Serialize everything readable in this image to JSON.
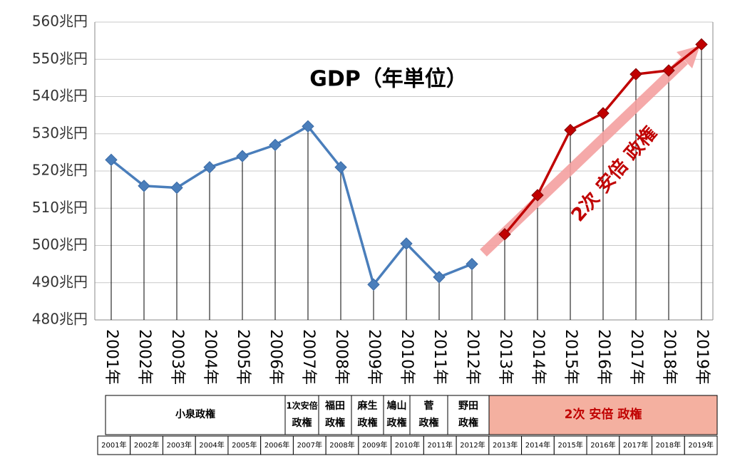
{
  "chart_data": {
    "type": "line",
    "title": "GDP（年単位）",
    "annotation": "2次 安倍 政権",
    "categories": [
      "2001年",
      "2002年",
      "2003年",
      "2004年",
      "2005年",
      "2006年",
      "2007年",
      "2008年",
      "2009年",
      "2010年",
      "2011年",
      "2012年",
      "2013年",
      "2014年",
      "2015年",
      "2016年",
      "2017年",
      "2018年",
      "2019年"
    ],
    "series": [
      {
        "color": "#4a7ebb",
        "values": [
          523,
          516,
          515.5,
          521,
          524,
          527,
          532,
          521,
          489.5,
          500.5,
          491.5,
          495,
          null,
          null,
          null,
          null,
          null,
          null,
          null
        ]
      },
      {
        "color": "#c00000",
        "values": [
          null,
          null,
          null,
          null,
          null,
          null,
          null,
          null,
          null,
          null,
          null,
          null,
          503,
          513.5,
          531,
          535.5,
          546,
          547,
          554
        ]
      }
    ],
    "ylim": [
      480,
      560
    ],
    "yticks": [
      {
        "value": 480,
        "label": "480兆円"
      },
      {
        "value": 490,
        "label": "490兆円"
      },
      {
        "value": 500,
        "label": "500兆円"
      },
      {
        "value": 510,
        "label": "510兆円"
      },
      {
        "value": 520,
        "label": "520兆円"
      },
      {
        "value": 530,
        "label": "530兆円"
      },
      {
        "value": 540,
        "label": "540兆円"
      },
      {
        "value": 550,
        "label": "550兆円"
      },
      {
        "value": 560,
        "label": "560兆円"
      }
    ],
    "grid": true
  },
  "table": {
    "cabinets": [
      [
        "小泉政権"
      ],
      [
        "1次安倍",
        "政権"
      ],
      [
        "福田",
        "政権"
      ],
      [
        "麻生",
        "政権"
      ],
      [
        "鳩山",
        "政権"
      ],
      [
        "菅",
        "政権"
      ],
      [
        "野田",
        "政権"
      ],
      [
        "2次 安倍 政権"
      ]
    ]
  }
}
